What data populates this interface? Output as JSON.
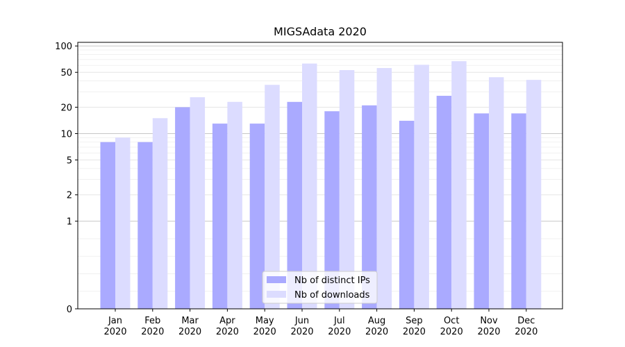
{
  "chart_data": {
    "type": "bar",
    "title": "MIGSAdata 2020",
    "xlabel": "",
    "ylabel": "",
    "y_scale": "symlog",
    "ylim": [
      0,
      110
    ],
    "y_ticks": [
      0,
      1,
      2,
      5,
      10,
      20,
      50,
      100
    ],
    "grid": true,
    "legend_position": "bottom-center",
    "categories": [
      {
        "month": "Jan",
        "year": "2020"
      },
      {
        "month": "Feb",
        "year": "2020"
      },
      {
        "month": "Mar",
        "year": "2020"
      },
      {
        "month": "Apr",
        "year": "2020"
      },
      {
        "month": "May",
        "year": "2020"
      },
      {
        "month": "Jun",
        "year": "2020"
      },
      {
        "month": "Jul",
        "year": "2020"
      },
      {
        "month": "Aug",
        "year": "2020"
      },
      {
        "month": "Sep",
        "year": "2020"
      },
      {
        "month": "Oct",
        "year": "2020"
      },
      {
        "month": "Nov",
        "year": "2020"
      },
      {
        "month": "Dec",
        "year": "2020"
      }
    ],
    "series": [
      {
        "name": "Nb of distinct IPs",
        "color": "#aaaaff",
        "values": [
          8,
          8,
          20,
          13,
          13,
          23,
          18,
          21,
          14,
          27,
          17,
          17
        ]
      },
      {
        "name": "Nb of downloads",
        "color": "#dcdcff",
        "values": [
          9,
          15,
          26,
          23,
          36,
          63,
          53,
          56,
          61,
          67,
          44,
          41
        ]
      }
    ]
  }
}
